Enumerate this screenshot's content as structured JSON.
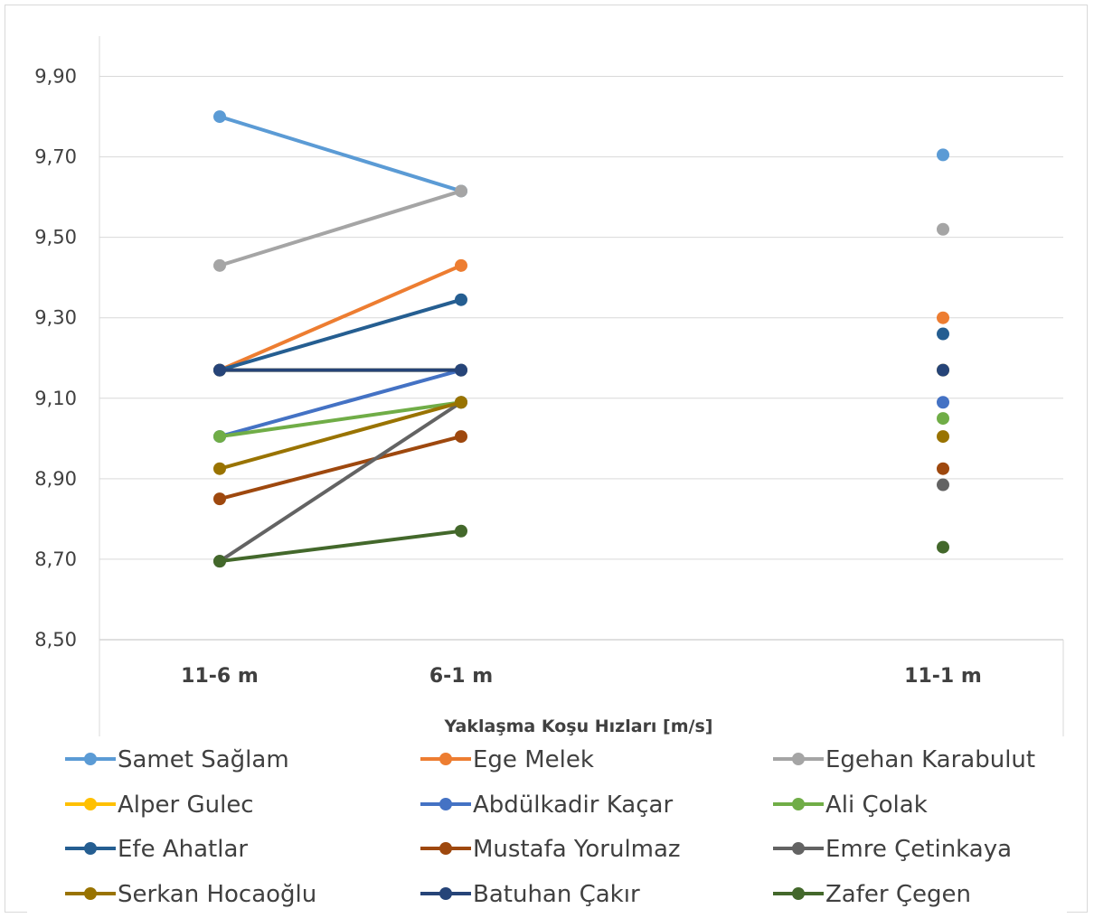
{
  "chart_data": {
    "type": "line",
    "xlabel": "Yaklaşma Koşu Hızları [m/s]",
    "ylabel": "",
    "title": "",
    "categories": [
      "11-6 m",
      "6-1 m",
      "11-1 m"
    ],
    "ylim": [
      8.5,
      10.0
    ],
    "yticks": [
      "8,50",
      "8,70",
      "8,90",
      "9,10",
      "9,30",
      "9,50",
      "9,70",
      "9,90"
    ],
    "grid": "horizontal",
    "legend_position": "bottom",
    "series": [
      {
        "name": "Samet Sağlam",
        "color": "#5b9bd5",
        "values": [
          9.8,
          9.615,
          9.705
        ]
      },
      {
        "name": "Ege Melek",
        "color": "#ed7d31",
        "values": [
          9.17,
          9.43,
          9.3
        ]
      },
      {
        "name": "Egehan Karabulut",
        "color": "#a5a5a5",
        "values": [
          9.43,
          9.615,
          9.52
        ]
      },
      {
        "name": "Alper Gulec",
        "color": "#ffc000",
        "values": [
          9.17,
          9.17,
          9.17
        ]
      },
      {
        "name": "Abdülkadir Kaçar",
        "color": "#4472c4",
        "values": [
          9.005,
          9.17,
          9.09
        ]
      },
      {
        "name": "Ali Çolak",
        "color": "#70ad47",
        "values": [
          9.005,
          9.09,
          9.05
        ]
      },
      {
        "name": "Efe Ahatlar",
        "color": "#255e91",
        "values": [
          9.17,
          9.345,
          9.26
        ]
      },
      {
        "name": "Mustafa Yorulmaz",
        "color": "#9e480e",
        "values": [
          8.85,
          9.005,
          8.925
        ]
      },
      {
        "name": "Emre Çetinkaya",
        "color": "#636363",
        "values": [
          8.695,
          9.09,
          8.885
        ]
      },
      {
        "name": "Serkan Hocaoğlu",
        "color": "#997300",
        "values": [
          8.925,
          9.09,
          9.005
        ]
      },
      {
        "name": "Batuhan Çakır",
        "color": "#264478",
        "values": [
          9.17,
          9.17,
          9.17
        ]
      },
      {
        "name": "Zafer Çegen",
        "color": "#43682b",
        "values": [
          8.695,
          8.77,
          8.73
        ]
      }
    ]
  }
}
